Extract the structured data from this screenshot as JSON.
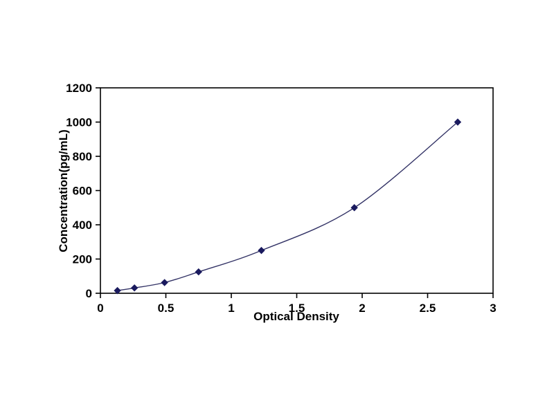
{
  "chart_data": {
    "type": "line",
    "title": "",
    "xlabel": "Optical Density",
    "ylabel": "Concentration(pg/mL)",
    "x": [
      0.13,
      0.26,
      0.49,
      0.75,
      1.23,
      1.94,
      2.73
    ],
    "y": [
      15.6,
      31.2,
      62.5,
      125,
      250,
      500,
      1000
    ],
    "xlim": [
      0,
      3
    ],
    "ylim": [
      0,
      1200
    ],
    "xticks": [
      0,
      0.5,
      1,
      1.5,
      2,
      2.5,
      3
    ],
    "yticks": [
      0,
      200,
      400,
      600,
      800,
      1000,
      1200
    ],
    "grid": false,
    "legend": "none",
    "line_color": "#333366",
    "marker_color": "#1a1a5e",
    "axis_color": "#000000",
    "marker_shape": "diamond"
  }
}
